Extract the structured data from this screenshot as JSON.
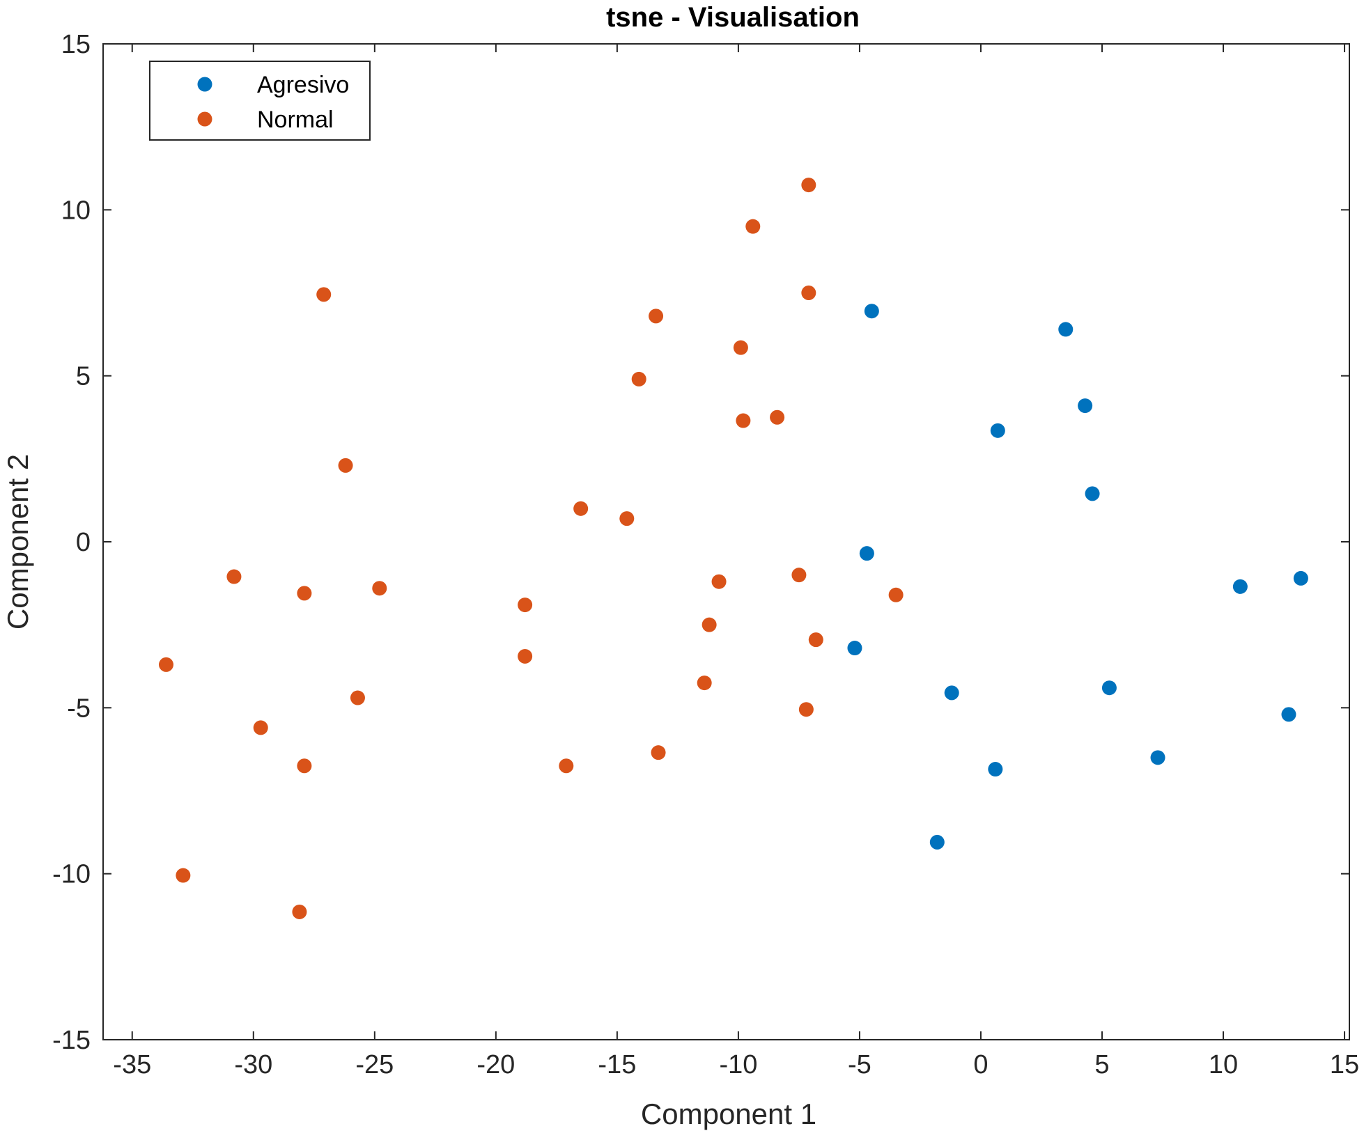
{
  "chart_data": {
    "type": "scatter",
    "title": "tsne - Visualisation",
    "xlabel": "Component 1",
    "ylabel": "Component 2",
    "xlim": [
      -36.2,
      15.2
    ],
    "ylim": [
      -15,
      15
    ],
    "xticks": [
      -35,
      -30,
      -25,
      -20,
      -15,
      -10,
      -5,
      0,
      5,
      10,
      15
    ],
    "yticks": [
      -15,
      -10,
      -5,
      0,
      5,
      10,
      15
    ],
    "grid": false,
    "legend_position": "top-left",
    "series": [
      {
        "name": "Agresivo",
        "color": "#0072BD",
        "points": [
          [
            -4.5,
            6.95
          ],
          [
            3.5,
            6.4
          ],
          [
            4.3,
            4.1
          ],
          [
            0.7,
            3.35
          ],
          [
            4.6,
            1.45
          ],
          [
            -4.7,
            -0.35
          ],
          [
            -5.2,
            -3.2
          ],
          [
            -1.2,
            -4.55
          ],
          [
            0.6,
            -6.85
          ],
          [
            -1.8,
            -9.05
          ],
          [
            5.3,
            -4.4
          ],
          [
            7.3,
            -6.5
          ],
          [
            10.7,
            -1.35
          ],
          [
            13.2,
            -1.1
          ],
          [
            12.7,
            -5.2
          ]
        ]
      },
      {
        "name": "Normal",
        "color": "#D95319",
        "points": [
          [
            -7.1,
            10.75
          ],
          [
            -9.4,
            9.5
          ],
          [
            -7.1,
            7.5
          ],
          [
            -27.1,
            7.45
          ],
          [
            -13.4,
            6.8
          ],
          [
            -9.9,
            5.85
          ],
          [
            -14.1,
            4.9
          ],
          [
            -9.8,
            3.65
          ],
          [
            -8.4,
            3.75
          ],
          [
            -26.2,
            2.3
          ],
          [
            -16.5,
            1.0
          ],
          [
            -14.6,
            0.7
          ],
          [
            -30.8,
            -1.05
          ],
          [
            -7.5,
            -1.0
          ],
          [
            -10.8,
            -1.2
          ],
          [
            -27.9,
            -1.55
          ],
          [
            -24.8,
            -1.4
          ],
          [
            -3.5,
            -1.6
          ],
          [
            -18.8,
            -1.9
          ],
          [
            -11.2,
            -2.5
          ],
          [
            -6.8,
            -2.95
          ],
          [
            -18.8,
            -3.45
          ],
          [
            -33.6,
            -3.7
          ],
          [
            -11.4,
            -4.25
          ],
          [
            -25.7,
            -4.7
          ],
          [
            -7.2,
            -5.05
          ],
          [
            -29.7,
            -5.6
          ],
          [
            -13.3,
            -6.35
          ],
          [
            -17.1,
            -6.75
          ],
          [
            -27.9,
            -6.75
          ],
          [
            -32.9,
            -10.05
          ],
          [
            -28.1,
            -11.15
          ]
        ]
      }
    ]
  }
}
